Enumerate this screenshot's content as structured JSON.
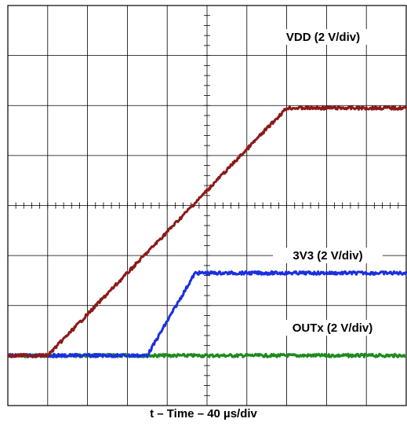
{
  "chart_data": {
    "type": "line",
    "xlabel": "t – Time – 40 µs/div",
    "x_unit": "div",
    "y_unit": "div",
    "xlim": [
      0,
      10
    ],
    "ylim": [
      0,
      8
    ],
    "grid": true,
    "series": [
      {
        "name": "VDD (2 V/div)",
        "color": "#8b1a1a",
        "points": [
          [
            0,
            1.0
          ],
          [
            1.0,
            1.0
          ],
          [
            7.0,
            5.95
          ],
          [
            10,
            5.95
          ]
        ]
      },
      {
        "name": "3V3 (2 V/div)",
        "color": "#1a2fe0",
        "points": [
          [
            0,
            1.0
          ],
          [
            3.5,
            1.0
          ],
          [
            4.7,
            2.65
          ],
          [
            10,
            2.65
          ]
        ]
      },
      {
        "name": "OUTx (2 V/div)",
        "color": "#1f8a1f",
        "points": [
          [
            0,
            1.0
          ],
          [
            10,
            1.0
          ]
        ]
      }
    ],
    "annotations": [
      "VDD (2 V/div)",
      "3V3 (2 V/div)",
      "OUTx (2 V/div)"
    ]
  }
}
